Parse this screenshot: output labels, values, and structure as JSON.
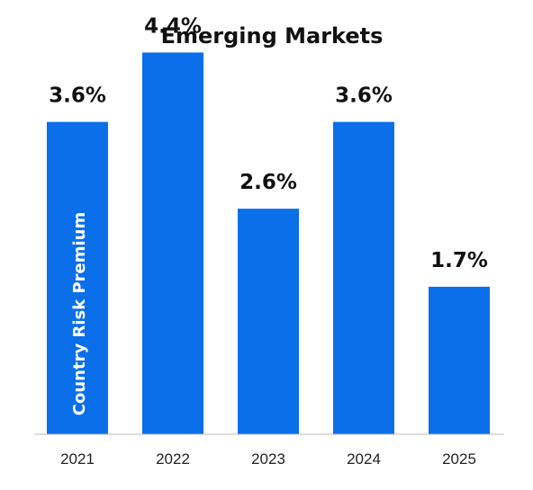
{
  "chart_data": {
    "type": "bar",
    "title": "Emerging Markets",
    "xlabel": "",
    "ylabel": "Country Risk Premium",
    "categories": [
      "2021",
      "2022",
      "2023",
      "2024",
      "2025"
    ],
    "values": [
      3.6,
      4.4,
      2.6,
      3.6,
      1.7
    ],
    "value_labels": [
      "3.6%",
      "4.4%",
      "2.6%",
      "3.6%",
      "1.7%"
    ],
    "ylim": [
      0,
      4.5
    ],
    "grid": false,
    "bar_color": "#0a6fe8",
    "baseline_color": "#bbbbbb"
  }
}
